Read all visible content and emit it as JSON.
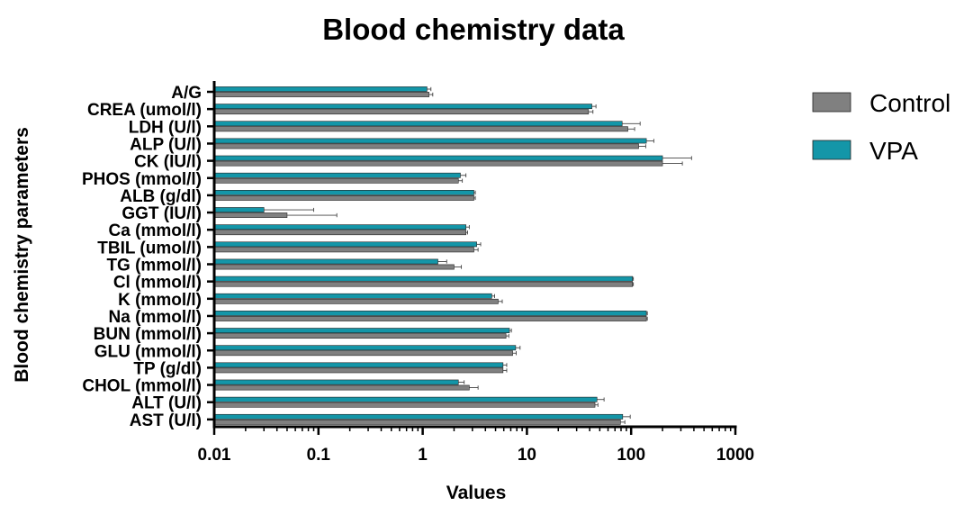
{
  "chart_data": {
    "type": "bar",
    "orientation": "horizontal",
    "title": "Blood chemistry data",
    "xlabel": "Values",
    "ylabel": "Blood chemistry parameters",
    "x_scale": "log",
    "xlim": [
      0.01,
      1000
    ],
    "x_ticks": [
      "0.01",
      "0.1",
      "1",
      "10",
      "100",
      "1000"
    ],
    "legend_position": "right",
    "grid": false,
    "categories": [
      "A/G",
      "CREA (umol/l)",
      "LDH (U/l)",
      "ALP (U/l)",
      "CK (IU/l)",
      "PHOS (mmol/l)",
      "ALB (g/dl)",
      "GGT (IU/l)",
      "Ca (mmol/l)",
      "TBIL (umol/l)",
      "TG (mmol/l)",
      "Cl (mmol/l)",
      "K (mmol/l)",
      "Na (mmol/l)",
      "BUN (mmol/l)",
      "GLU (mmol/l)",
      "TP (g/dl)",
      "CHOL (mmol/l)",
      "ALT (U/l)",
      "AST (U/l)"
    ],
    "series": [
      {
        "name": "VPA",
        "color": "#1496A8",
        "values": [
          1.1,
          42,
          82,
          140,
          200,
          2.3,
          3.1,
          0.03,
          2.6,
          3.3,
          1.4,
          103,
          4.6,
          140,
          6.8,
          7.8,
          5.9,
          2.2,
          47,
          83
        ],
        "errors": [
          0.1,
          4,
          40,
          25,
          180,
          0.3,
          0.1,
          0.06,
          0.2,
          0.3,
          0.3,
          2,
          0.3,
          3,
          0.3,
          0.8,
          0.5,
          0.3,
          8,
          15
        ]
      },
      {
        "name": "Control",
        "color": "#808080",
        "values": [
          1.15,
          39,
          93,
          118,
          200,
          2.2,
          3.1,
          0.05,
          2.6,
          3.1,
          2.0,
          103,
          5.3,
          140,
          6.3,
          7.3,
          5.9,
          2.8,
          45,
          79
        ],
        "errors": [
          0.1,
          4,
          15,
          20,
          110,
          0.2,
          0.1,
          0.1,
          0.1,
          0.3,
          0.35,
          2,
          0.5,
          3,
          0.4,
          0.6,
          0.5,
          0.6,
          3,
          8
        ]
      }
    ]
  }
}
